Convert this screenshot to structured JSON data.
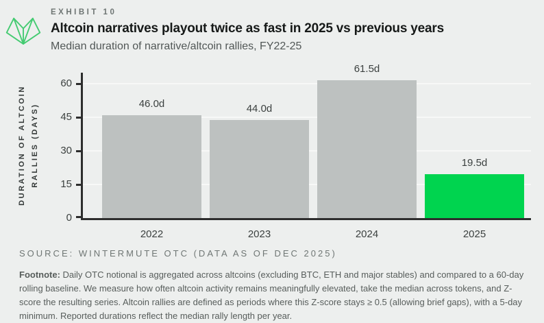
{
  "exhibit": {
    "label": "EXHIBIT 10"
  },
  "header": {
    "title": "Altcoin narratives playout twice as fast in 2025 vs previous years",
    "subtitle": "Median duration of narrative/altcoin rallies, FY22-25"
  },
  "logo": {
    "name": "wintermute-logo",
    "color": "#45cb72"
  },
  "chart_data": {
    "type": "bar",
    "title": "Median duration of narrative/altcoin rallies, FY22-25",
    "categories": [
      "2022",
      "2023",
      "2024",
      "2025"
    ],
    "values": [
      46.0,
      44.0,
      61.5,
      19.5
    ],
    "value_labels": [
      "46.0d",
      "44.0d",
      "61.5d",
      "19.5d"
    ],
    "bar_colors": [
      "#bdc1c0",
      "#bdc1c0",
      "#bdc1c0",
      "#00d44f"
    ],
    "default_bar_color": "#bdc1c0",
    "highlight_color": "#00d44f",
    "ylabel_line1": "DURATION OF ALTCOIN",
    "ylabel_line2": "RALLIES (DAYS)",
    "xlabel": "",
    "yticks": [
      0,
      15,
      30,
      45,
      60
    ],
    "ylim": [
      0,
      65
    ],
    "grid": true,
    "axis_color": "#2d2d2d",
    "gridline_color": "#f7f8f7",
    "legend": "none"
  },
  "source": {
    "text": "SOURCE: WINTERMUTE OTC (DATA AS OF DEC 2025)"
  },
  "footnote": {
    "label": "Footnote:",
    "text": " Daily OTC notional is aggregated across altcoins (excluding BTC, ETH and major stables) and compared to a 60-day rolling baseline. We measure how often altcoin activity remains meaningfully elevated, take the median across tokens, and Z-score the resulting series. Altcoin rallies are defined as periods where this Z-score stays ≥ 0.5 (allowing brief gaps), with a 5-day minimum. Reported durations reflect the median rally length per year."
  }
}
